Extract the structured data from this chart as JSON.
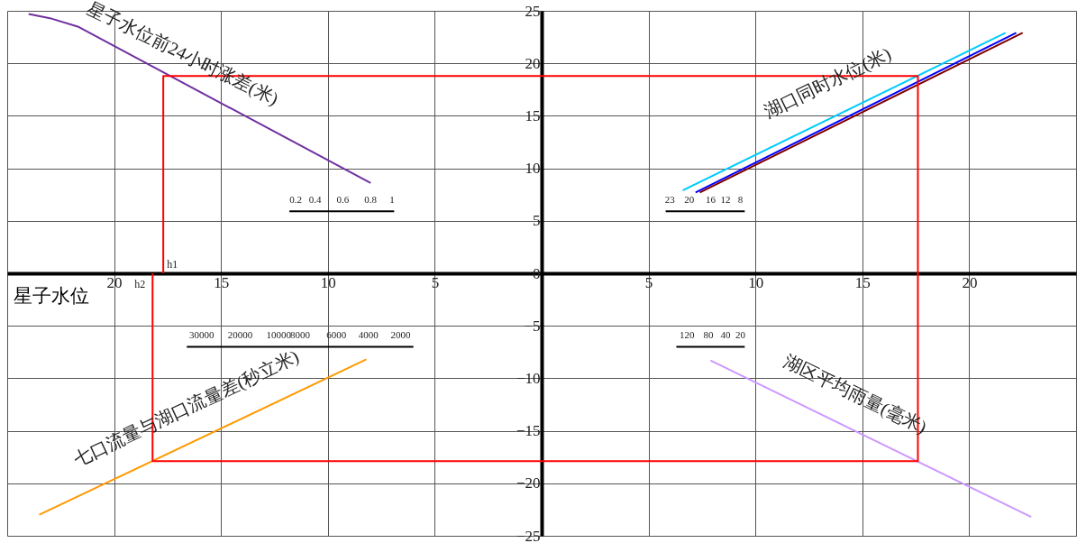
{
  "chart_data": {
    "type": "line",
    "xlabel": "星子水位",
    "xlim": [
      -25,
      25
    ],
    "ylim": [
      -25,
      25
    ],
    "xticks": [
      {
        "value": -25,
        "label": null
      },
      {
        "value": -20,
        "label": "20"
      },
      {
        "value": -15,
        "label": "15"
      },
      {
        "value": -10,
        "label": "10"
      },
      {
        "value": -5,
        "label": "5"
      },
      {
        "value": 0,
        "label": null
      },
      5,
      10,
      15,
      20,
      {
        "value": 25,
        "label": null
      }
    ],
    "yticks": [
      25,
      20,
      15,
      10,
      5,
      0,
      -5,
      -10,
      -15,
      -20,
      -25
    ],
    "grid": true,
    "series": [
      {
        "name": "星子水位前24小时涨差(米)",
        "color": "#7030a0",
        "x": [
          -24.0,
          -23.0,
          -21.7,
          -8.0
        ],
        "values": [
          24.7,
          24.3,
          23.5,
          8.6
        ]
      },
      {
        "name": "湖口同时水位(米)",
        "color": "#00ccff",
        "x": [
          6.6,
          21.7
        ],
        "values": [
          7.9,
          22.9
        ]
      },
      {
        "color": "#0000ff",
        "x": [
          7.2,
          22.2
        ],
        "values": [
          7.7,
          22.9
        ]
      },
      {
        "color": "#800000",
        "x": [
          7.4,
          22.5
        ],
        "values": [
          7.7,
          22.9
        ]
      },
      {
        "name": "七口流量与湖口流量差(秒立米)",
        "color": "#ff9900",
        "x": [
          -23.5,
          -8.2
        ],
        "values": [
          -23.0,
          -8.2
        ]
      },
      {
        "name": "湖区平均雨量(毫米)",
        "color": "#cc99ff",
        "x": [
          7.9,
          22.9
        ],
        "values": [
          -8.3,
          -23.2
        ]
      },
      {
        "color": "#ff0000",
        "x": [
          -17.7,
          -17.7,
          17.6,
          17.6,
          -18.2,
          -18.2
        ],
        "values": [
          0,
          18.8,
          18.8,
          -17.9,
          -17.9,
          0
        ]
      },
      {
        "color": "#000000",
        "x": [
          -11.8,
          -11.5,
          -10.6,
          -9.3,
          -8.0,
          -7.0,
          -6.9
        ],
        "values": [
          5.9,
          5.9,
          5.9,
          5.9,
          5.9,
          5.9,
          5.9
        ]
      },
      {
        "color": "#000000",
        "x": [
          9.5,
          9.3,
          8.6,
          7.9,
          6.9,
          6.0,
          5.8
        ],
        "values": [
          5.9,
          5.9,
          5.9,
          5.9,
          5.9,
          5.9,
          5.9
        ]
      },
      {
        "color": "#000000",
        "x": [
          -6.0,
          -6.6,
          -8.1,
          -9.6,
          -11.3,
          -12.3,
          -14.1,
          -15.9,
          -16.6
        ],
        "values": [
          -7.0,
          -7.0,
          -7.0,
          -7.0,
          -7.0,
          -7.0,
          -7.0,
          -7.0,
          -7.0
        ]
      },
      {
        "color": "#000000",
        "x": [
          9.5,
          9.3,
          8.6,
          7.8,
          6.8,
          6.3
        ],
        "values": [
          -7.0,
          -7.0,
          -7.0,
          -7.0,
          -7.0,
          -7.0
        ]
      }
    ],
    "annotations": [
      {
        "text": "h1",
        "x": -17.7,
        "y": 0
      },
      {
        "text": "h2",
        "x": -18.2,
        "y": 0
      },
      {
        "text": "0.2",
        "x": -11.5,
        "y": 5.9
      },
      {
        "text": "0.4",
        "x": -10.6,
        "y": 5.9
      },
      {
        "text": "0.6",
        "x": -9.3,
        "y": 5.9
      },
      {
        "text": "0.8",
        "x": -8.0,
        "y": 5.9
      },
      {
        "text": "1",
        "x": -7.0,
        "y": 5.9
      },
      {
        "text": "8",
        "x": 9.3,
        "y": 5.9
      },
      {
        "text": "12",
        "x": 8.6,
        "y": 5.9
      },
      {
        "text": "16",
        "x": 7.9,
        "y": 5.9
      },
      {
        "text": "20",
        "x": 6.9,
        "y": 5.9
      },
      {
        "text": "23",
        "x": 6.0,
        "y": 5.9
      },
      {
        "text": "2000",
        "x": -6.6,
        "y": -7.0
      },
      {
        "text": "4000",
        "x": -8.1,
        "y": -7.0
      },
      {
        "text": "6000",
        "x": -9.6,
        "y": -7.0
      },
      {
        "text": "8000",
        "x": -11.3,
        "y": -7.0
      },
      {
        "text": "10000",
        "x": -12.3,
        "y": -7.0
      },
      {
        "text": "20000",
        "x": -14.1,
        "y": -7.0
      },
      {
        "text": "30000",
        "x": -15.9,
        "y": -7.0
      },
      {
        "text": "20",
        "x": 9.3,
        "y": -7.0
      },
      {
        "text": "40",
        "x": 8.6,
        "y": -7.0
      },
      {
        "text": "80",
        "x": 7.8,
        "y": -7.0
      },
      {
        "text": "120",
        "x": 6.8,
        "y": -7.0
      }
    ]
  }
}
